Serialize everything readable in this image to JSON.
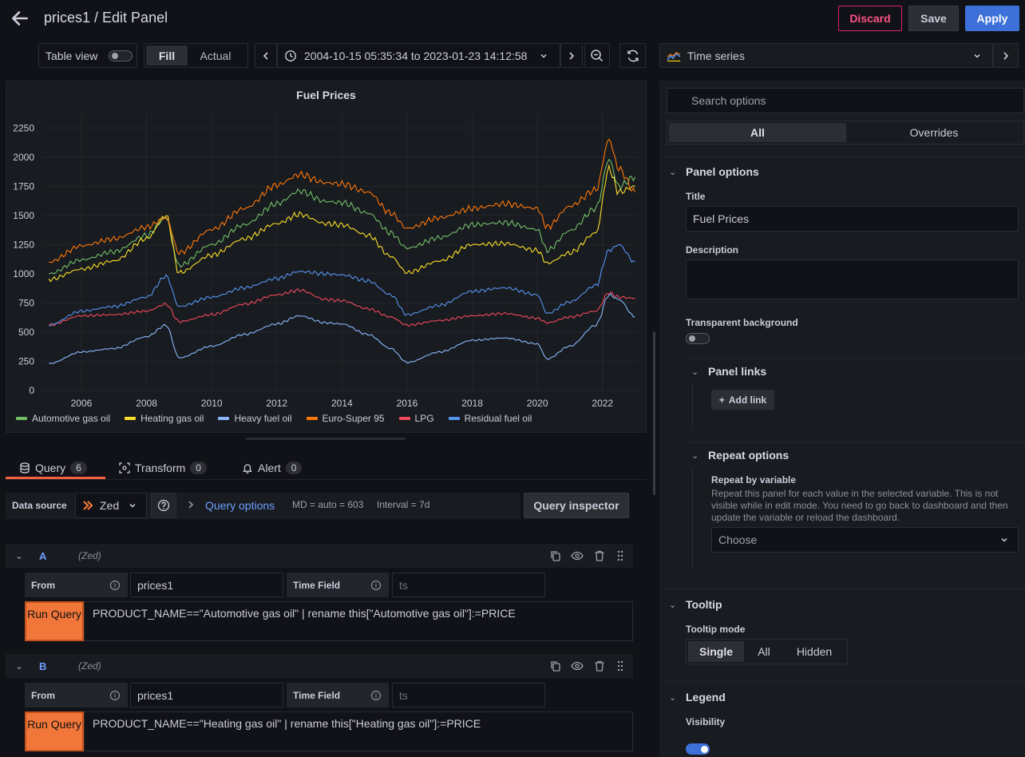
{
  "header": {
    "title": "prices1 / Edit Panel",
    "discard": "Discard",
    "save": "Save",
    "apply": "Apply"
  },
  "toolbar": {
    "table_view": "Table view",
    "fill": "Fill",
    "actual": "Actual",
    "time_range": "2004-10-15 05:35:34 to 2023-01-23 14:12:58",
    "visualization": "Time series"
  },
  "chart_data": {
    "type": "line",
    "title": "Fuel Prices",
    "x_ticks": [
      "2006",
      "2008",
      "2010",
      "2012",
      "2014",
      "2016",
      "2018",
      "2020",
      "2022"
    ],
    "y_ticks": [
      "0",
      "250",
      "500",
      "750",
      "1000",
      "1250",
      "1500",
      "1750",
      "2000",
      "2250"
    ],
    "xlim": [
      2004.8,
      2023.06
    ],
    "ylim": [
      0,
      2375
    ],
    "x": [
      2005,
      2006,
      2007,
      2008,
      2008.6,
      2009,
      2010,
      2011,
      2012,
      2012.7,
      2013.5,
      2014,
      2014.8,
      2015.5,
      2016,
      2017,
      2018,
      2019,
      2020,
      2020.3,
      2021,
      2021.8,
      2022.2,
      2022.5,
      2023
    ],
    "series": [
      {
        "name": "Automotive gas oil",
        "color": "#73bf69",
        "values": [
          1000,
          1120,
          1190,
          1330,
          1480,
          1070,
          1250,
          1420,
          1600,
          1710,
          1620,
          1610,
          1520,
          1350,
          1220,
          1310,
          1420,
          1440,
          1380,
          1200,
          1370,
          1560,
          1980,
          1750,
          1830
        ]
      },
      {
        "name": "Heating gas oil",
        "color": "#fade2a",
        "values": [
          950,
          1040,
          1110,
          1300,
          1500,
          1010,
          1160,
          1300,
          1430,
          1510,
          1430,
          1420,
          1330,
          1150,
          1010,
          1110,
          1250,
          1260,
          1200,
          1090,
          1180,
          1350,
          1900,
          1700,
          1750
        ]
      },
      {
        "name": "Heavy fuel oil",
        "color": "#8ab8ff",
        "values": [
          230,
          330,
          360,
          460,
          560,
          280,
          380,
          480,
          570,
          640,
          580,
          570,
          480,
          360,
          240,
          330,
          430,
          450,
          400,
          270,
          380,
          560,
          820,
          780,
          630
        ]
      },
      {
        "name": "Euro-Super 95",
        "color": "#ff780a",
        "values": [
          1100,
          1240,
          1300,
          1400,
          1480,
          1180,
          1380,
          1560,
          1760,
          1850,
          1780,
          1770,
          1700,
          1520,
          1390,
          1480,
          1560,
          1600,
          1560,
          1400,
          1580,
          1720,
          2150,
          1900,
          1700
        ]
      },
      {
        "name": "LPG",
        "color": "#f2495c",
        "values": [
          560,
          640,
          650,
          680,
          740,
          590,
          650,
          740,
          820,
          860,
          780,
          770,
          700,
          630,
          560,
          600,
          640,
          660,
          620,
          580,
          630,
          680,
          840,
          800,
          790
        ]
      },
      {
        "name": "Residual fuel oil",
        "color": "#5794f2",
        "values": [
          560,
          680,
          720,
          800,
          980,
          720,
          800,
          880,
          960,
          1020,
          1000,
          990,
          940,
          820,
          650,
          730,
          850,
          880,
          820,
          660,
          760,
          900,
          1200,
          1250,
          1100
        ]
      }
    ]
  },
  "query_tabs": [
    {
      "label": "Query",
      "count": "6"
    },
    {
      "label": "Transform",
      "count": "0"
    },
    {
      "label": "Alert",
      "count": "0"
    }
  ],
  "datasource": {
    "label": "Data source",
    "name": "Zed",
    "query_options": "Query options",
    "md": "MD = auto = 603",
    "interval": "Interval = 7d",
    "inspector": "Query inspector"
  },
  "queries": [
    {
      "letter": "A",
      "ds": "(Zed)",
      "from_label": "From",
      "from": "prices1",
      "time_field_label": "Time Field",
      "time_field_ph": "ts",
      "run": "Run Query",
      "text": "PRODUCT_NAME==\"Automotive gas oil\" | rename this[\"Automotive gas oil\"]:=PRICE"
    },
    {
      "letter": "B",
      "ds": "(Zed)",
      "from_label": "From",
      "from": "prices1",
      "time_field_label": "Time Field",
      "time_field_ph": "ts",
      "run": "Run Query",
      "text": "PRODUCT_NAME==\"Heating gas oil\" | rename this[\"Heating gas oil\"]:=PRICE"
    }
  ],
  "options": {
    "search_ph": "Search options",
    "tab_all": "All",
    "tab_overrides": "Overrides",
    "panel_options": "Panel options",
    "title_label": "Title",
    "title_value": "Fuel Prices",
    "description_label": "Description",
    "transparent_label": "Transparent background",
    "panel_links": "Panel links",
    "add_link": "Add link",
    "repeat_options": "Repeat options",
    "repeat_by_label": "Repeat by variable",
    "repeat_desc": "Repeat this panel for each value in the selected variable. This is not visible while in edit mode. You need to go back to dashboard and then update the variable or reload the dashboard.",
    "choose": "Choose",
    "tooltip": "Tooltip",
    "tooltip_mode_label": "Tooltip mode",
    "tooltip_single": "Single",
    "tooltip_all": "All",
    "tooltip_hidden": "Hidden",
    "legend": "Legend",
    "visibility_label": "Visibility"
  }
}
